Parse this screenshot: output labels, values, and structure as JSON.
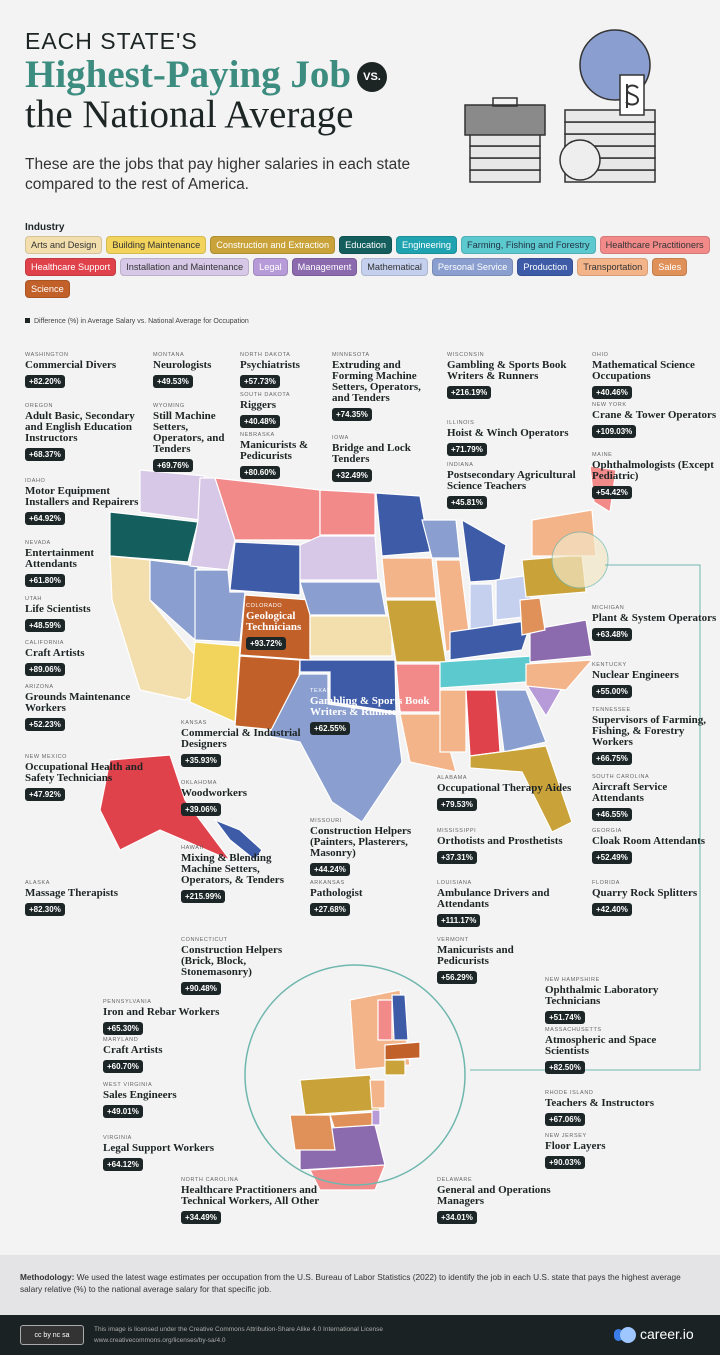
{
  "header": {
    "kicker": "EACH STATE'S",
    "title": "Highest-Paying Job",
    "vs": "VS.",
    "title2": "the National Average",
    "subtitle": "These are the jobs that pay higher salaries in each state compared to the rest of America."
  },
  "legend": {
    "title": "Industry",
    "note": "Difference (%) in Average Salary vs. National Average for Occupation",
    "items": [
      {
        "label": "Arts and Design",
        "color": "#f3dfae",
        "text": "#333"
      },
      {
        "label": "Building Maintenance",
        "color": "#f2d45c",
        "text": "#333"
      },
      {
        "label": "Construction and Extraction",
        "color": "#c9a33a",
        "text": "#fff"
      },
      {
        "label": "Education",
        "color": "#145e5e",
        "text": "#fff"
      },
      {
        "label": "Engineering",
        "color": "#1fa3b0",
        "text": "#fff"
      },
      {
        "label": "Farming, Fishing and Forestry",
        "color": "#5cc9cf",
        "text": "#234"
      },
      {
        "label": "Healthcare Practitioners",
        "color": "#f28a8a",
        "text": "#333"
      },
      {
        "label": "Healthcare Support",
        "color": "#e0424b",
        "text": "#fff"
      },
      {
        "label": "Installation and Maintenance",
        "color": "#d6c8e6",
        "text": "#333"
      },
      {
        "label": "Legal",
        "color": "#b79ad8",
        "text": "#fff"
      },
      {
        "label": "Management",
        "color": "#8b6aae",
        "text": "#fff"
      },
      {
        "label": "Mathematical",
        "color": "#c4d0ee",
        "text": "#333"
      },
      {
        "label": "Personal Service",
        "color": "#8a9fcf",
        "text": "#fff"
      },
      {
        "label": "Production",
        "color": "#3d5ba6",
        "text": "#fff"
      },
      {
        "label": "Transportation",
        "color": "#f4b48a",
        "text": "#333"
      },
      {
        "label": "Sales",
        "color": "#e0915a",
        "text": "#fff"
      },
      {
        "label": "Science",
        "color": "#c2602a",
        "text": "#fff"
      }
    ]
  },
  "states": [
    {
      "state": "Washington",
      "job": "Commercial Divers",
      "value": "+82.20%"
    },
    {
      "state": "Oregon",
      "job": "Adult Basic, Secondary and English Education Instructors",
      "value": "+68.37%"
    },
    {
      "state": "Idaho",
      "job": "Motor Equipment Installers and Repairers",
      "value": "+64.92%"
    },
    {
      "state": "Nevada",
      "job": "Entertainment Attendants",
      "value": "+61.80%"
    },
    {
      "state": "Utah",
      "job": "Life Scientists",
      "value": "+48.59%"
    },
    {
      "state": "California",
      "job": "Craft Artists",
      "value": "+89.06%"
    },
    {
      "state": "Arizona",
      "job": "Grounds Maintenance Workers",
      "value": "+52.23%"
    },
    {
      "state": "New Mexico",
      "job": "Occupational Health and Safety Technicians",
      "value": "+47.92%"
    },
    {
      "state": "Alaska",
      "job": "Massage Therapists",
      "value": "+82.30%"
    },
    {
      "state": "Montana",
      "job": "Neurologists",
      "value": "+49.53%"
    },
    {
      "state": "Wyoming",
      "job": "Still Machine Setters, Operators, and Tenders",
      "value": "+69.76%"
    },
    {
      "state": "North Dakota",
      "job": "Psychiatrists",
      "value": "+57.73%"
    },
    {
      "state": "South Dakota",
      "job": "Riggers",
      "value": "+40.48%"
    },
    {
      "state": "Nebraska",
      "job": "Manicurists & Pedicurists",
      "value": "+80.60%"
    },
    {
      "state": "Colorado",
      "job": "Geological Technicians",
      "value": "+93.72%"
    },
    {
      "state": "Kansas",
      "job": "Commercial & Industrial Designers",
      "value": "+35.93%"
    },
    {
      "state": "Oklahoma",
      "job": "Woodworkers",
      "value": "+39.06%"
    },
    {
      "state": "Hawaii",
      "job": "Mixing & Blending Machine Setters, Operators, & Tenders",
      "value": "+215.99%"
    },
    {
      "state": "Texas",
      "job": "Gambling & Sports Book Writers & Runners",
      "value": "+62.55%"
    },
    {
      "state": "Minnesota",
      "job": "Extruding and Forming Machine Setters, Operators, and Tenders",
      "value": "+74.35%"
    },
    {
      "state": "Iowa",
      "job": "Bridge and Lock Tenders",
      "value": "+32.49%"
    },
    {
      "state": "Missouri",
      "job": "Construction Helpers (Painters, Plasterers, Masonry)",
      "value": "+44.24%"
    },
    {
      "state": "Arkansas",
      "job": "Pathologist",
      "value": "+27.68%"
    },
    {
      "state": "Wisconsin",
      "job": "Gambling & Sports Book Writers & Runners",
      "value": "+216.19%"
    },
    {
      "state": "Illinois",
      "job": "Hoist & Winch Operators",
      "value": "+71.79%"
    },
    {
      "state": "Indiana",
      "job": "Postsecondary Agricultural Science Teachers",
      "value": "+45.81%"
    },
    {
      "state": "Alabama",
      "job": "Occupational Therapy Aides",
      "value": "+79.53%"
    },
    {
      "state": "Mississippi",
      "job": "Orthotists and Prosthetists",
      "value": "+37.31%"
    },
    {
      "state": "Louisiana",
      "job": "Ambulance Drivers and Attendants",
      "value": "+111.17%"
    },
    {
      "state": "Ohio",
      "job": "Mathematical Science Occupations",
      "value": "+40.46%"
    },
    {
      "state": "New York",
      "job": "Crane & Tower Operators",
      "value": "+109.03%"
    },
    {
      "state": "Maine",
      "job": "Ophthalmologists (Except Pediatric)",
      "value": "+54.42%"
    },
    {
      "state": "Michigan",
      "job": "Plant & System Operators",
      "value": "+63.48%"
    },
    {
      "state": "Kentucky",
      "job": "Nuclear Engineers",
      "value": "+55.00%"
    },
    {
      "state": "Tennessee",
      "job": "Supervisors of Farming, Fishing, & Forestry Workers",
      "value": "+66.75%"
    },
    {
      "state": "South Carolina",
      "job": "Aircraft Service Attendants",
      "value": "+46.55%"
    },
    {
      "state": "Georgia",
      "job": "Cloak Room Attendants",
      "value": "+52.49%"
    },
    {
      "state": "Florida",
      "job": "Quarry Rock Splitters",
      "value": "+42.40%"
    },
    {
      "state": "Connecticut",
      "job": "Construction Helpers (Brick, Block, Stonemasonry)",
      "value": "+90.48%"
    },
    {
      "state": "Pennsylvania",
      "job": "Iron and Rebar Workers",
      "value": "+65.30%"
    },
    {
      "state": "Maryland",
      "job": "Craft Artists",
      "value": "+60.70%"
    },
    {
      "state": "West Virginia",
      "job": "Sales Engineers",
      "value": "+49.01%"
    },
    {
      "state": "Virginia",
      "job": "Legal Support Workers",
      "value": "+64.12%"
    },
    {
      "state": "North Carolina",
      "job": "Healthcare Practitioners and Technical Workers, All Other",
      "value": "+34.49%"
    },
    {
      "state": "Delaware",
      "job": "General and Operations Managers",
      "value": "+34.01%"
    },
    {
      "state": "Vermont",
      "job": "Manicurists and Pedicurists",
      "value": "+56.29%"
    },
    {
      "state": "New Hampshire",
      "job": "Ophthalmic Laboratory Technicians",
      "value": "+51.74%"
    },
    {
      "state": "Massachusetts",
      "job": "Atmospheric and Space Scientists",
      "value": "+82.50%"
    },
    {
      "state": "Rhode Island",
      "job": "Teachers & Instructors",
      "value": "+67.06%"
    },
    {
      "state": "New Jersey",
      "job": "Floor Layers",
      "value": "+90.03%"
    }
  ],
  "methodology": {
    "label": "Methodology:",
    "text": " We used the latest wage estimates per occupation from the U.S. Bureau of Labor Statistics (2022) to identify the job in each U.S. state that pays the highest average salary relative (%) to the national average salary for that specific job."
  },
  "footer": {
    "license": "This image is licensed under the Creative Commons Attribution-Share Alike 4.0 International License",
    "url": "www.creativecommons.org/licenses/by-sa/4.0",
    "cc": "cc by nc sa",
    "brand": "career.io"
  }
}
